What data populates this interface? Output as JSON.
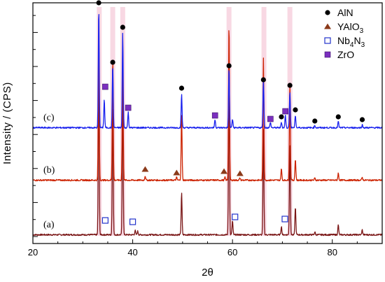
{
  "chart_data": {
    "type": "line",
    "title": "",
    "xlabel": "2θ",
    "ylabel": "Intensity / (CPS)",
    "xlim": [
      20,
      90
    ],
    "x_ticks": [
      20,
      40,
      60,
      80
    ],
    "y_tick_labels": "none",
    "grid": false,
    "legend_placement": "top-right",
    "legend": [
      {
        "label": "AlN",
        "marker": "filled-circle",
        "color": "#000000"
      },
      {
        "label": "YAlO",
        "sub": "3",
        "marker": "filled-triangle",
        "color": "#8b3a1a"
      },
      {
        "label": "Nb",
        "sub": "4",
        "label2": "N",
        "sub2": "3",
        "marker": "open-square",
        "color": "#2233cc"
      },
      {
        "label": "ZrO",
        "marker": "filled-square",
        "color": "#7b2fbf"
      }
    ],
    "highlight_color": "#f2b8cc",
    "highlight_regions": [
      33.3,
      36.0,
      38.0,
      59.3,
      66.3,
      71.5
    ],
    "series": [
      {
        "name": "(a)",
        "color": "#7a1616",
        "offset": 0,
        "peaks": [
          [
            33.2,
            230
          ],
          [
            36.0,
            190
          ],
          [
            38.0,
            200
          ],
          [
            40.5,
            6
          ],
          [
            41.0,
            5
          ],
          [
            49.8,
            60
          ],
          [
            59.3,
            230
          ],
          [
            60.0,
            20
          ],
          [
            66.2,
            150
          ],
          [
            69.8,
            12
          ],
          [
            71.5,
            130
          ],
          [
            72.6,
            40
          ],
          [
            76.5,
            4
          ],
          [
            81.2,
            14
          ],
          [
            86.0,
            7
          ]
        ],
        "markers": [
          {
            "x": 34.5,
            "y": 22,
            "type": "Nb4N3"
          },
          {
            "x": 40.0,
            "y": 20,
            "type": "Nb4N3"
          },
          {
            "x": 60.5,
            "y": 27,
            "type": "Nb4N3"
          },
          {
            "x": 70.5,
            "y": 24,
            "type": "Nb4N3"
          }
        ]
      },
      {
        "name": "(b)",
        "color": "#cc2200",
        "offset": 78,
        "peaks": [
          [
            33.2,
            215
          ],
          [
            36.0,
            175
          ],
          [
            38.0,
            190
          ],
          [
            42.5,
            6
          ],
          [
            48.8,
            4
          ],
          [
            49.8,
            95
          ],
          [
            58.5,
            4
          ],
          [
            59.3,
            225
          ],
          [
            61.5,
            3
          ],
          [
            66.2,
            175
          ],
          [
            69.8,
            16
          ],
          [
            71.5,
            140
          ],
          [
            72.6,
            30
          ],
          [
            76.5,
            3
          ],
          [
            81.2,
            10
          ],
          [
            86.0,
            4
          ]
        ],
        "markers": [
          {
            "x": 42.5,
            "y": 17,
            "type": "YAlO3"
          },
          {
            "x": 48.8,
            "y": 12,
            "type": "YAlO3"
          },
          {
            "x": 58.3,
            "y": 14,
            "type": "YAlO3"
          },
          {
            "x": 61.5,
            "y": 11,
            "type": "YAlO3"
          }
        ]
      },
      {
        "name": "(c)",
        "color": "#1a22ee",
        "offset": 153,
        "peaks": [
          [
            33.2,
            170
          ],
          [
            34.3,
            40
          ],
          [
            36.0,
            90
          ],
          [
            38.0,
            135
          ],
          [
            39.1,
            22
          ],
          [
            49.8,
            48
          ],
          [
            56.5,
            12
          ],
          [
            59.3,
            85
          ],
          [
            60.0,
            12
          ],
          [
            66.2,
            70
          ],
          [
            67.6,
            8
          ],
          [
            69.8,
            8
          ],
          [
            70.6,
            18
          ],
          [
            71.5,
            52
          ],
          [
            72.6,
            18
          ],
          [
            76.5,
            3
          ],
          [
            81.2,
            9
          ],
          [
            86.0,
            4
          ]
        ],
        "markers": [
          {
            "x": 33.2,
            "y": 180,
            "type": "AlN"
          },
          {
            "x": 36.0,
            "y": 95,
            "type": "AlN"
          },
          {
            "x": 38.0,
            "y": 145,
            "type": "AlN"
          },
          {
            "x": 49.8,
            "y": 58,
            "type": "AlN"
          },
          {
            "x": 59.3,
            "y": 90,
            "type": "AlN"
          },
          {
            "x": 66.2,
            "y": 70,
            "type": "AlN"
          },
          {
            "x": 69.8,
            "y": 17,
            "type": "AlN"
          },
          {
            "x": 71.5,
            "y": 62,
            "type": "AlN"
          },
          {
            "x": 72.6,
            "y": 27,
            "type": "AlN"
          },
          {
            "x": 76.5,
            "y": 11,
            "type": "AlN"
          },
          {
            "x": 81.2,
            "y": 17,
            "type": "AlN"
          },
          {
            "x": 86.0,
            "y": 13,
            "type": "AlN"
          },
          {
            "x": 34.5,
            "y": 60,
            "type": "ZrO"
          },
          {
            "x": 39.1,
            "y": 30,
            "type": "ZrO"
          },
          {
            "x": 56.5,
            "y": 19,
            "type": "ZrO"
          },
          {
            "x": 67.6,
            "y": 14,
            "type": "ZrO"
          },
          {
            "x": 70.6,
            "y": 25,
            "type": "ZrO"
          }
        ]
      }
    ]
  }
}
